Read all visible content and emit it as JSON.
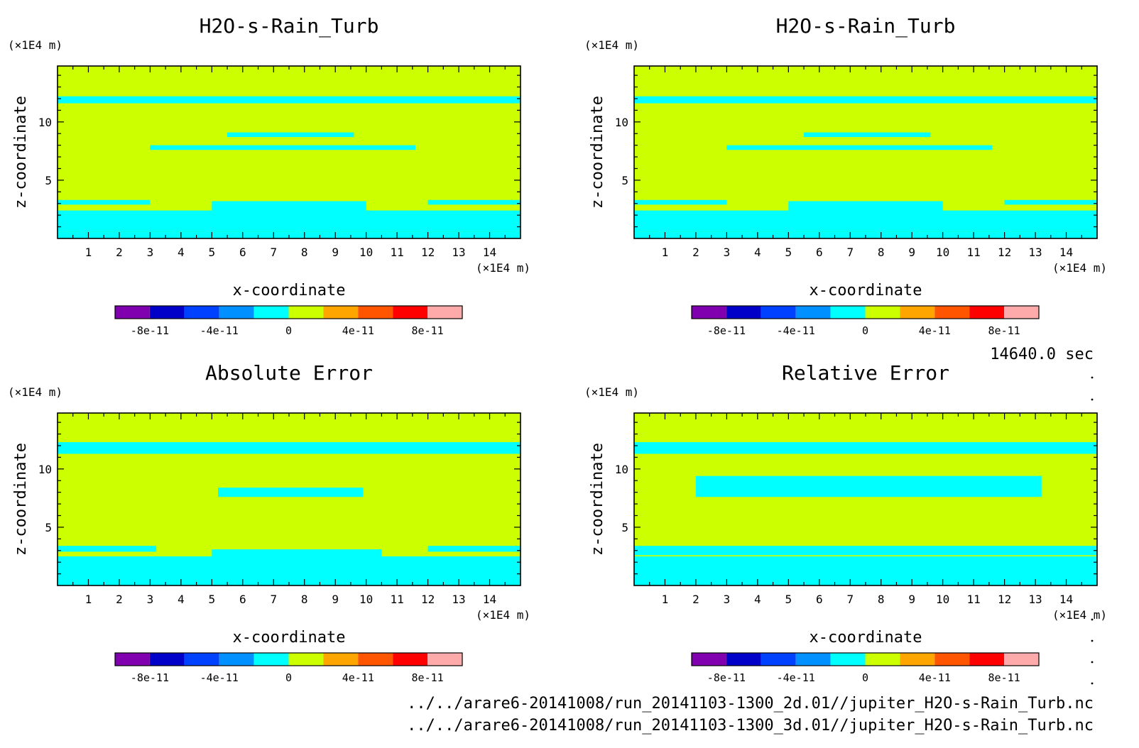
{
  "chart_data": [
    {
      "type": "heatmap",
      "title": "H2O-s-Rain_Turb",
      "xlabel": "x-coordinate",
      "ylabel": "z-coordinate",
      "x_unit": "(×1E4 m)",
      "y_unit": "(×1E4 m)",
      "x_ticks": [
        "1",
        "2",
        "3",
        "4",
        "5",
        "6",
        "7",
        "8",
        "9",
        "10",
        "11",
        "12",
        "13",
        "14"
      ],
      "y_ticks": [
        "5",
        "10"
      ],
      "xlim": [
        0,
        15
      ],
      "ylim": [
        0,
        14.8
      ],
      "background_level": "0 to 2e-11",
      "patch_level": "-2e-11 to 0",
      "patches": [
        {
          "x0": 0.0,
          "x1": 15.0,
          "y0": 11.6,
          "y1": 12.2
        },
        {
          "x0": 5.5,
          "x1": 9.6,
          "y0": 8.7,
          "y1": 9.1
        },
        {
          "x0": 3.0,
          "x1": 11.6,
          "y0": 7.6,
          "y1": 8.0
        },
        {
          "x0": 0.0,
          "x1": 3.0,
          "y0": 2.9,
          "y1": 3.3
        },
        {
          "x0": 12.0,
          "x1": 15.0,
          "y0": 2.9,
          "y1": 3.3
        },
        {
          "x0": 5.0,
          "x1": 10.0,
          "y0": 2.2,
          "y1": 3.2
        },
        {
          "x0": 0.0,
          "x1": 15.0,
          "y0": 0.6,
          "y1": 2.4
        },
        {
          "x0": 0.0,
          "x1": 15.0,
          "y0": 0.0,
          "y1": 0.6
        }
      ]
    },
    {
      "type": "heatmap",
      "title": "H2O-s-Rain_Turb",
      "xlabel": "x-coordinate",
      "ylabel": "z-coordinate",
      "x_unit": "(×1E4 m)",
      "y_unit": "(×1E4 m)",
      "x_ticks": [
        "1",
        "2",
        "3",
        "4",
        "5",
        "6",
        "7",
        "8",
        "9",
        "10",
        "11",
        "12",
        "13",
        "14"
      ],
      "y_ticks": [
        "5",
        "10"
      ],
      "xlim": [
        0,
        15
      ],
      "ylim": [
        0,
        14.8
      ],
      "background_level": "0 to 2e-11",
      "patch_level": "-2e-11 to 0",
      "patches": [
        {
          "x0": 0.0,
          "x1": 15.0,
          "y0": 11.6,
          "y1": 12.2
        },
        {
          "x0": 5.5,
          "x1": 9.6,
          "y0": 8.7,
          "y1": 9.1
        },
        {
          "x0": 3.0,
          "x1": 11.6,
          "y0": 7.6,
          "y1": 8.0
        },
        {
          "x0": 0.0,
          "x1": 3.0,
          "y0": 2.9,
          "y1": 3.3
        },
        {
          "x0": 12.0,
          "x1": 15.0,
          "y0": 2.9,
          "y1": 3.3
        },
        {
          "x0": 5.0,
          "x1": 10.0,
          "y0": 2.2,
          "y1": 3.2
        },
        {
          "x0": 0.0,
          "x1": 15.0,
          "y0": 0.6,
          "y1": 2.4
        },
        {
          "x0": 0.0,
          "x1": 15.0,
          "y0": 0.0,
          "y1": 0.6
        }
      ]
    },
    {
      "type": "heatmap",
      "title": "Absolute Error",
      "xlabel": "x-coordinate",
      "ylabel": "z-coordinate",
      "x_unit": "(×1E4 m)",
      "y_unit": "(×1E4 m)",
      "x_ticks": [
        "1",
        "2",
        "3",
        "4",
        "5",
        "6",
        "7",
        "8",
        "9",
        "10",
        "11",
        "12",
        "13",
        "14"
      ],
      "y_ticks": [
        "5",
        "10"
      ],
      "xlim": [
        0,
        15
      ],
      "ylim": [
        0,
        14.8
      ],
      "background_level": "0 to 2e-11",
      "patch_level": "-2e-11 to 0",
      "patches": [
        {
          "x0": 0.0,
          "x1": 15.0,
          "y0": 11.3,
          "y1": 12.3
        },
        {
          "x0": 5.2,
          "x1": 9.9,
          "y0": 7.6,
          "y1": 8.4
        },
        {
          "x0": 0.0,
          "x1": 3.2,
          "y0": 2.9,
          "y1": 3.4
        },
        {
          "x0": 12.0,
          "x1": 15.0,
          "y0": 2.9,
          "y1": 3.4
        },
        {
          "x0": 5.0,
          "x1": 10.5,
          "y0": 2.4,
          "y1": 3.1
        },
        {
          "x0": 0.0,
          "x1": 15.0,
          "y0": 0.0,
          "y1": 2.5
        }
      ]
    },
    {
      "type": "heatmap",
      "title": "Relative Error",
      "xlabel": "x-coordinate",
      "ylabel": "z-coordinate",
      "x_unit": "(×1E4 m)",
      "y_unit": "(×1E4 m)",
      "x_ticks": [
        "1",
        "2",
        "3",
        "4",
        "5",
        "6",
        "7",
        "8",
        "9",
        "10",
        "11",
        "12",
        "13",
        "14"
      ],
      "y_ticks": [
        "5",
        "10"
      ],
      "xlim": [
        0,
        15
      ],
      "ylim": [
        0,
        14.8
      ],
      "background_level": "0 to 2e-11",
      "patch_level": "-2e-11 to 0",
      "patches": [
        {
          "x0": 0.0,
          "x1": 15.0,
          "y0": 11.3,
          "y1": 12.3
        },
        {
          "x0": 2.0,
          "x1": 13.2,
          "y0": 7.6,
          "y1": 9.4
        },
        {
          "x0": 0.0,
          "x1": 15.0,
          "y0": 2.6,
          "y1": 3.4
        },
        {
          "x0": 0.0,
          "x1": 15.0,
          "y0": 0.0,
          "y1": 2.5
        }
      ]
    }
  ],
  "colorbar": {
    "colors": [
      "#8000b0",
      "#0000c8",
      "#0040ff",
      "#0090ff",
      "#00ffff",
      "#ccff00",
      "#ffa500",
      "#ff5500",
      "#ff0000",
      "#ffaaaa"
    ],
    "ticks": [
      "-8e-11",
      "-4e-11",
      "0",
      "4e-11",
      "8e-11"
    ]
  },
  "time_label": "14640.0 sec",
  "files": [
    "../../arare6-20141008/run_20141103-1300_2d.01//jupiter_H2O-s-Rain_Turb.nc",
    "../../arare6-20141008/run_20141103-1300_3d.01//jupiter_H2O-s-Rain_Turb.nc"
  ]
}
